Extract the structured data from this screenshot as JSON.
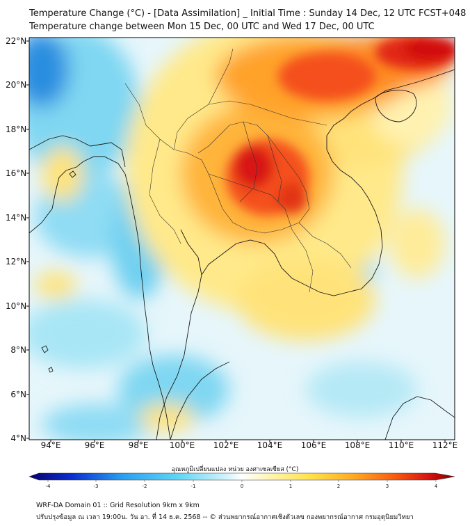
{
  "title_line1": "Temperature Change (°C) - [Data Assimilation] _ Initial Time : Sunday 14 Dec, 12 UTC FCST+048",
  "title_line2": "Temperature change between Mon 15 Dec, 00 UTC and Wed 17 Dec, 00 UTC",
  "lat_labels": [
    "22°N",
    "20°N",
    "18°N",
    "16°N",
    "14°N",
    "12°N",
    "10°N",
    "8°N",
    "6°N",
    "4°N"
  ],
  "lon_labels": [
    "94°E",
    "96°E",
    "98°E",
    "100°E",
    "102°E",
    "104°E",
    "106°E",
    "108°E",
    "110°E",
    "112°E"
  ],
  "colorbar": {
    "title": "อุณหภูมิเปลี่ยนแปลง หน่วย องศาเซลเซียส (°C)",
    "ticks": [
      "-4",
      "-3",
      "-2",
      "-1",
      "0",
      "1",
      "2",
      "3",
      "4"
    ],
    "range": [
      -4,
      4
    ],
    "colors": [
      "#08006e",
      "#0a2fd0",
      "#2a9ff0",
      "#5fd6f6",
      "#cff2fb",
      "#ffffff",
      "#fff6b8",
      "#ffe24a",
      "#ffac24",
      "#f85a10",
      "#d81010",
      "#7a0000"
    ]
  },
  "footer_line1": "WRF-DA Domain 01 :: Grid Resolution 9km x 9km",
  "footer_line2": "ปรับปรุงข้อมูล ณ เวลา 19:00น. วัน อา. ที่ 14 ธ.ค. 2568 -- © ส่วนพยากรณ์อากาศเชิงตัวเลข กองพยากรณ์อากาศ กรมอุตุนิยมวิทยา"
}
